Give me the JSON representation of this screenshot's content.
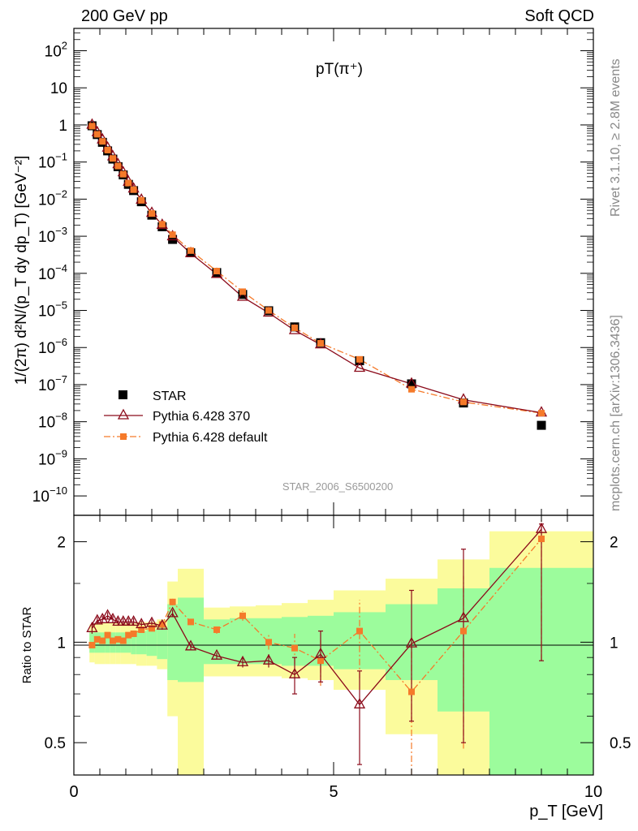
{
  "header": {
    "left": "200 GeV pp",
    "right": "Soft QCD"
  },
  "side_labels": {
    "rivet": "Rivet 3.1.10, ≥ 2.8M events",
    "mcplots": "mcplots.cern.ch [arXiv:1306.3436]"
  },
  "watermark": "STAR_2006_S6500200",
  "colors": {
    "star": "#000000",
    "pythia370": "#8b0a1a",
    "pythia_default": "#f57a2a",
    "band_inner": "#9cfc9c",
    "band_outer": "#fbfb9c"
  },
  "chart_data": [
    {
      "type": "scatter",
      "title": "pT(π⁺)",
      "ylabel": "1/(2π) d²N/(p_T dy dp_T) [GeV⁻²]",
      "y_scale": "log",
      "xlim": [
        0,
        10
      ],
      "ylim": [
        3e-11,
        400
      ],
      "legend_position": "left-middle",
      "y_ticks": [
        {
          "value": 1e-10,
          "base": "10",
          "exp": "−10"
        },
        {
          "value": 1e-09,
          "base": "10",
          "exp": "−9"
        },
        {
          "value": 1e-08,
          "base": "10",
          "exp": "−8"
        },
        {
          "value": 1e-07,
          "base": "10",
          "exp": "−7"
        },
        {
          "value": 1e-06,
          "base": "10",
          "exp": "−6"
        },
        {
          "value": 1e-05,
          "base": "10",
          "exp": "−5"
        },
        {
          "value": 0.0001,
          "base": "10",
          "exp": "−4"
        },
        {
          "value": 0.001,
          "base": "10",
          "exp": "−3"
        },
        {
          "value": 0.01,
          "base": "10",
          "exp": "−2"
        },
        {
          "value": 0.1,
          "base": "10",
          "exp": "−1"
        },
        {
          "value": 1,
          "base": "1",
          "exp": ""
        },
        {
          "value": 10,
          "base": "10",
          "exp": ""
        },
        {
          "value": 100,
          "base": "10",
          "exp": "2"
        }
      ],
      "x": [
        0.35,
        0.45,
        0.55,
        0.65,
        0.75,
        0.85,
        0.95,
        1.05,
        1.15,
        1.3,
        1.5,
        1.7,
        1.9,
        2.25,
        2.75,
        3.25,
        3.75,
        4.25,
        4.75,
        5.5,
        6.5,
        7.5,
        9.0
      ],
      "series": [
        {
          "name": "STAR",
          "style": "square",
          "values": [
            0.95,
            0.55,
            0.34,
            0.2,
            0.12,
            0.075,
            0.045,
            0.025,
            0.017,
            0.0085,
            0.0037,
            0.0018,
            0.00082,
            0.00036,
            0.000105,
            2.7e-05,
            9.8e-06,
            3.6e-06,
            1.35e-06,
            4.4e-07,
            1.05e-07,
            3.2e-08,
            8e-09
          ]
        },
        {
          "name": "Pythia 6.428 370",
          "style": "triangle-line",
          "values": [
            1.0,
            0.63,
            0.4,
            0.24,
            0.14,
            0.086,
            0.052,
            0.029,
            0.019,
            0.0095,
            0.0042,
            0.002,
            0.00098,
            0.000345,
            9.5e-05,
            2.3e-05,
            8.6e-06,
            2.9e-06,
            1.2e-06,
            2.8e-07,
            1.05e-07,
            3.9e-08,
            1.75e-08
          ]
        },
        {
          "name": "Pythia 6.428 default",
          "style": "square-dashdot",
          "values": [
            0.93,
            0.56,
            0.36,
            0.21,
            0.125,
            0.078,
            0.047,
            0.027,
            0.018,
            0.0093,
            0.0041,
            0.0021,
            0.0011,
            0.00041,
            0.000115,
            3.2e-05,
            1e-05,
            3.4e-06,
            1.3e-06,
            4.8e-07,
            7.5e-08,
            3.4e-08,
            1.7e-08
          ]
        }
      ]
    },
    {
      "type": "scatter",
      "ylabel": "Ratio to STAR",
      "y_scale": "log",
      "xlabel": "p_T [GeV]",
      "xlim": [
        0,
        10
      ],
      "ylim": [
        0.4,
        2.4
      ],
      "reference_line": 1,
      "y_ticks": [
        {
          "value": 0.5,
          "label": "0.5"
        },
        {
          "value": 1,
          "label": "1"
        },
        {
          "value": 2,
          "label": "2"
        }
      ],
      "x_ticks": [
        {
          "value": 0,
          "label": "0"
        },
        {
          "value": 5,
          "label": "5"
        },
        {
          "value": 10,
          "label": "10"
        }
      ],
      "bands": [
        {
          "x0": 0.3,
          "x1": 0.4,
          "inner": [
            0.93,
            1.07
          ],
          "outer": [
            0.87,
            1.13
          ]
        },
        {
          "x0": 0.4,
          "x1": 0.5,
          "inner": [
            0.93,
            1.07
          ],
          "outer": [
            0.86,
            1.14
          ]
        },
        {
          "x0": 0.5,
          "x1": 0.6,
          "inner": [
            0.93,
            1.07
          ],
          "outer": [
            0.86,
            1.14
          ]
        },
        {
          "x0": 0.6,
          "x1": 0.7,
          "inner": [
            0.93,
            1.07
          ],
          "outer": [
            0.86,
            1.14
          ]
        },
        {
          "x0": 0.7,
          "x1": 0.8,
          "inner": [
            0.93,
            1.07
          ],
          "outer": [
            0.86,
            1.14
          ]
        },
        {
          "x0": 0.8,
          "x1": 0.9,
          "inner": [
            0.93,
            1.07
          ],
          "outer": [
            0.86,
            1.14
          ]
        },
        {
          "x0": 0.9,
          "x1": 1.0,
          "inner": [
            0.93,
            1.07
          ],
          "outer": [
            0.86,
            1.14
          ]
        },
        {
          "x0": 1.0,
          "x1": 1.1,
          "inner": [
            0.93,
            1.07
          ],
          "outer": [
            0.86,
            1.14
          ]
        },
        {
          "x0": 1.1,
          "x1": 1.2,
          "inner": [
            0.92,
            1.08
          ],
          "outer": [
            0.86,
            1.14
          ]
        },
        {
          "x0": 1.2,
          "x1": 1.4,
          "inner": [
            0.92,
            1.08
          ],
          "outer": [
            0.85,
            1.15
          ]
        },
        {
          "x0": 1.4,
          "x1": 1.6,
          "inner": [
            0.91,
            1.09
          ],
          "outer": [
            0.85,
            1.15
          ]
        },
        {
          "x0": 1.6,
          "x1": 1.8,
          "inner": [
            0.89,
            1.11
          ],
          "outer": [
            0.83,
            1.17
          ]
        },
        {
          "x0": 1.8,
          "x1": 2.0,
          "inner": [
            0.77,
            1.3
          ],
          "outer": [
            0.6,
            1.52
          ]
        },
        {
          "x0": 2.0,
          "x1": 2.5,
          "inner": [
            0.76,
            1.36
          ],
          "outer": [
            0.37,
            1.66
          ]
        },
        {
          "x0": 2.5,
          "x1": 3.0,
          "inner": [
            0.86,
            1.17
          ],
          "outer": [
            0.79,
            1.27
          ]
        },
        {
          "x0": 3.0,
          "x1": 3.5,
          "inner": [
            0.86,
            1.18
          ],
          "outer": [
            0.79,
            1.28
          ]
        },
        {
          "x0": 3.5,
          "x1": 4.0,
          "inner": [
            0.86,
            1.18
          ],
          "outer": [
            0.79,
            1.29
          ]
        },
        {
          "x0": 4.0,
          "x1": 4.5,
          "inner": [
            0.85,
            1.19
          ],
          "outer": [
            0.78,
            1.31
          ]
        },
        {
          "x0": 4.5,
          "x1": 5.0,
          "inner": [
            0.85,
            1.2
          ],
          "outer": [
            0.77,
            1.34
          ]
        },
        {
          "x0": 5.0,
          "x1": 6.0,
          "inner": [
            0.83,
            1.23
          ],
          "outer": [
            0.72,
            1.43
          ]
        },
        {
          "x0": 6.0,
          "x1": 7.0,
          "inner": [
            0.77,
            1.3
          ],
          "outer": [
            0.53,
            1.55
          ]
        },
        {
          "x0": 7.0,
          "x1": 8.0,
          "inner": [
            0.62,
            1.45
          ],
          "outer": [
            0.3,
            1.77
          ]
        },
        {
          "x0": 8.0,
          "x1": 10.0,
          "inner": [
            0.35,
            1.67
          ],
          "outer": [
            0.3,
            2.15
          ]
        }
      ],
      "x": [
        0.35,
        0.45,
        0.55,
        0.65,
        0.75,
        0.85,
        0.95,
        1.05,
        1.15,
        1.3,
        1.5,
        1.7,
        1.9,
        2.25,
        2.75,
        3.25,
        3.75,
        4.25,
        4.75,
        5.5,
        6.5,
        7.5,
        9.0
      ],
      "series": [
        {
          "name": "Pythia 6.428 370",
          "values": [
            1.1,
            1.16,
            1.17,
            1.2,
            1.17,
            1.15,
            1.15,
            1.15,
            1.15,
            1.13,
            1.14,
            1.12,
            1.22,
            0.97,
            0.91,
            0.87,
            0.88,
            0.8,
            0.92,
            0.65,
            0.99,
            1.18,
            2.18
          ],
          "err_low": [
            0.04,
            0.03,
            0.03,
            0.03,
            0.03,
            0.03,
            0.03,
            0.03,
            0.03,
            0.03,
            0.03,
            0.03,
            0.03,
            0.02,
            0.02,
            0.03,
            0.04,
            0.1,
            0.16,
            0.22,
            0.41,
            0.68,
            1.3
          ],
          "err_high": [
            0.04,
            0.03,
            0.03,
            0.03,
            0.03,
            0.03,
            0.03,
            0.03,
            0.03,
            0.03,
            0.03,
            0.03,
            0.03,
            0.02,
            0.02,
            0.03,
            0.04,
            0.1,
            0.16,
            0.17,
            0.44,
            0.72,
            0.08
          ]
        },
        {
          "name": "Pythia 6.428 default",
          "values": [
            0.98,
            1.02,
            1.01,
            1.05,
            1.01,
            1.02,
            1.01,
            1.05,
            1.06,
            1.09,
            1.1,
            1.13,
            1.32,
            1.15,
            1.09,
            1.2,
            1.0,
            0.96,
            0.88,
            1.08,
            0.71,
            1.08,
            2.04
          ],
          "err_low": [
            0.02,
            0.02,
            0.02,
            0.02,
            0.02,
            0.02,
            0.02,
            0.02,
            0.02,
            0.02,
            0.02,
            0.02,
            0.03,
            0.02,
            0.03,
            0.04,
            0.05,
            0.1,
            0.14,
            0.3,
            0.36,
            0.6,
            1.16
          ],
          "err_high": [
            0.02,
            0.02,
            0.02,
            0.02,
            0.02,
            0.02,
            0.02,
            0.02,
            0.02,
            0.02,
            0.02,
            0.02,
            0.03,
            0.02,
            0.03,
            0.04,
            0.05,
            0.1,
            0.14,
            0.26,
            0.3,
            0.5,
            0.3
          ]
        }
      ]
    }
  ]
}
